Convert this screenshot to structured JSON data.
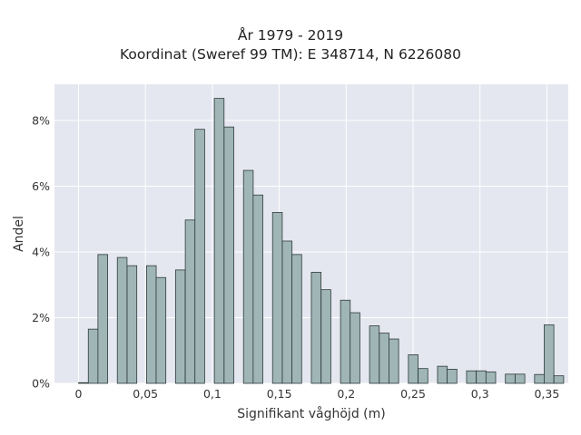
{
  "chart_data": {
    "type": "bar",
    "title": "År 1979 - 2019",
    "subtitle": "Koordinat (Sweref 99 TM): E 348714, N 6226080",
    "xlabel": "Signifikant våghöjd (m)",
    "ylabel": "Andel",
    "xlim": [
      -0.018,
      0.366
    ],
    "ylim": [
      0,
      9.1
    ],
    "bin_width": 0.00725,
    "x_ticks": [
      {
        "value": 0,
        "label": "0"
      },
      {
        "value": 0.05,
        "label": "0,05"
      },
      {
        "value": 0.1,
        "label": "0,1"
      },
      {
        "value": 0.15,
        "label": "0,15"
      },
      {
        "value": 0.2,
        "label": "0,2"
      },
      {
        "value": 0.25,
        "label": "0,25"
      },
      {
        "value": 0.3,
        "label": "0,3"
      },
      {
        "value": 0.35,
        "label": "0,35"
      }
    ],
    "y_ticks": [
      {
        "value": 0,
        "label": "0%"
      },
      {
        "value": 2,
        "label": "2%"
      },
      {
        "value": 4,
        "label": "4%"
      },
      {
        "value": 6,
        "label": "6%"
      },
      {
        "value": 8,
        "label": "8%"
      }
    ],
    "bars": [
      {
        "x": 0.0036,
        "y": 0.02
      },
      {
        "x": 0.0109,
        "y": 1.65
      },
      {
        "x": 0.0181,
        "y": 3.92
      },
      {
        "x": 0.0326,
        "y": 3.83
      },
      {
        "x": 0.0399,
        "y": 3.58
      },
      {
        "x": 0.0544,
        "y": 3.58
      },
      {
        "x": 0.0616,
        "y": 3.22
      },
      {
        "x": 0.0761,
        "y": 3.45
      },
      {
        "x": 0.0834,
        "y": 4.97
      },
      {
        "x": 0.0906,
        "y": 7.73
      },
      {
        "x": 0.1051,
        "y": 8.67
      },
      {
        "x": 0.1124,
        "y": 7.8
      },
      {
        "x": 0.1269,
        "y": 6.48
      },
      {
        "x": 0.1341,
        "y": 5.73
      },
      {
        "x": 0.1486,
        "y": 5.2
      },
      {
        "x": 0.1559,
        "y": 4.33
      },
      {
        "x": 0.1631,
        "y": 3.92
      },
      {
        "x": 0.1776,
        "y": 3.38
      },
      {
        "x": 0.1849,
        "y": 2.85
      },
      {
        "x": 0.1994,
        "y": 2.53
      },
      {
        "x": 0.2066,
        "y": 2.15
      },
      {
        "x": 0.2211,
        "y": 1.75
      },
      {
        "x": 0.2284,
        "y": 1.53
      },
      {
        "x": 0.2356,
        "y": 1.35
      },
      {
        "x": 0.2501,
        "y": 0.87
      },
      {
        "x": 0.2574,
        "y": 0.45
      },
      {
        "x": 0.2719,
        "y": 0.52
      },
      {
        "x": 0.2791,
        "y": 0.43
      },
      {
        "x": 0.2936,
        "y": 0.38
      },
      {
        "x": 0.3009,
        "y": 0.38
      },
      {
        "x": 0.3081,
        "y": 0.35
      },
      {
        "x": 0.3226,
        "y": 0.28
      },
      {
        "x": 0.3299,
        "y": 0.28
      },
      {
        "x": 0.3444,
        "y": 0.27
      },
      {
        "x": 0.3516,
        "y": 1.78
      },
      {
        "x": 0.3589,
        "y": 0.23
      }
    ],
    "grid": true,
    "legend": "none",
    "colors": {
      "bar_fill": "#9fb5b6",
      "bar_stroke": "#2f3b3b",
      "plot_bg": "#e5e7f0",
      "grid": "#ffffff"
    }
  }
}
